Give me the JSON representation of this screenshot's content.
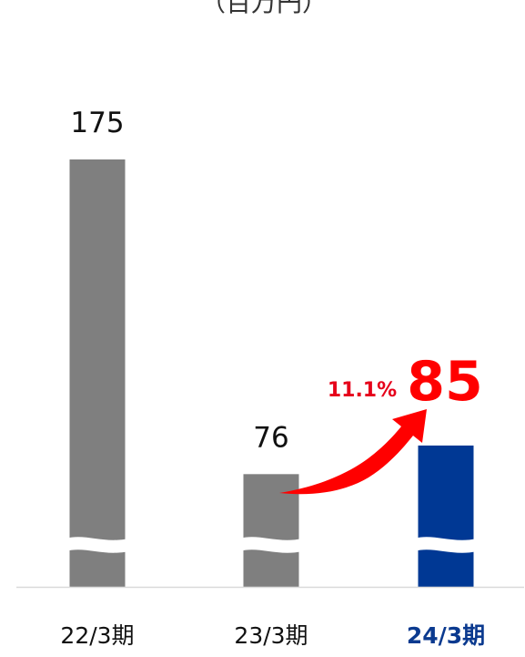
{
  "unit_label": "（百万円）",
  "colors": {
    "bar_default": "#7f7f7f",
    "bar_highlight": "#003894",
    "value_highlight": "#ff0000",
    "category_highlight": "#0b3a8f",
    "arrow": "#ff0000",
    "growth_text": "#e6001a",
    "baseline": "#d9d9d9"
  },
  "chart_data": {
    "type": "bar",
    "axis_break": true,
    "categories": [
      "22/3期",
      "23/3期",
      "24/3期"
    ],
    "values": [
      175,
      76,
      85
    ],
    "value_labels": [
      "175",
      "76",
      "85"
    ],
    "highlight_index": 2,
    "growth": {
      "from_category": "23/3期",
      "to_category": "24/3期",
      "label": "11.1%"
    },
    "title": "",
    "xlabel": "",
    "ylabel": "",
    "grid": false,
    "legend": "none"
  }
}
